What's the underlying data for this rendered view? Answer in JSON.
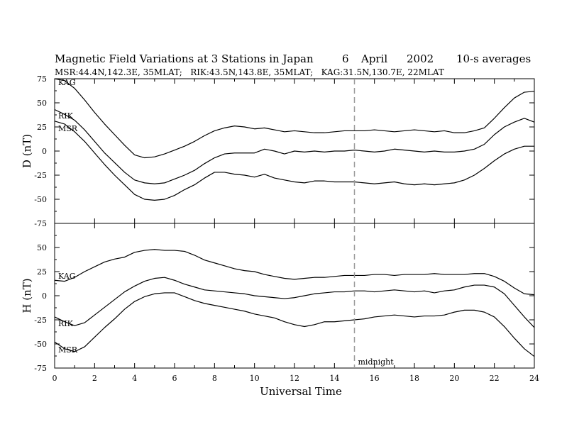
{
  "header": {
    "title": "Magnetic Field Variations at 3 Stations in Japan",
    "date_day": "6",
    "date_month": "April",
    "date_year": "2002",
    "averaging": "10-s averages",
    "stations_line": "MSR:44.4N,142.3E, 35MLAT;   RIK:43.5N,143.8E, 35MLAT;   KAG:31.5N,130.7E, 22MLAT"
  },
  "chart_data": [
    {
      "type": "line",
      "ylabel": "D (nT)",
      "xlim": [
        0,
        24
      ],
      "ylim": [
        -75,
        75
      ],
      "yticks": [
        -75,
        -50,
        -25,
        0,
        25,
        50,
        75
      ],
      "series": [
        {
          "name": "KAG",
          "x": [
            0,
            0.5,
            1,
            1.5,
            2,
            2.5,
            3,
            3.5,
            4,
            4.5,
            5,
            5.5,
            6,
            6.5,
            7,
            7.5,
            8,
            8.5,
            9,
            9.5,
            10,
            10.5,
            11,
            11.5,
            12,
            12.5,
            13,
            13.5,
            14,
            14.5,
            15,
            15.5,
            16,
            16.5,
            17,
            17.5,
            18,
            18.5,
            19,
            19.5,
            20,
            20.5,
            21,
            21.5,
            22,
            22.5,
            23,
            23.5,
            24
          ],
          "y": [
            75,
            73,
            65,
            53,
            40,
            28,
            17,
            6,
            -4,
            -7,
            -6,
            -3,
            1,
            5,
            10,
            16,
            21,
            24,
            26,
            25,
            23,
            24,
            22,
            20,
            21,
            20,
            19,
            19,
            20,
            21,
            21,
            21,
            22,
            21,
            20,
            21,
            22,
            21,
            20,
            21,
            19,
            19,
            21,
            24,
            34,
            45,
            55,
            61,
            62
          ]
        },
        {
          "name": "RIK",
          "x": [
            0,
            0.5,
            1,
            1.5,
            2,
            2.5,
            3,
            3.5,
            4,
            4.5,
            5,
            5.5,
            6,
            6.5,
            7,
            7.5,
            8,
            8.5,
            9,
            9.5,
            10,
            10.5,
            11,
            11.5,
            12,
            12.5,
            13,
            13.5,
            14,
            14.5,
            15,
            15.5,
            16,
            16.5,
            17,
            17.5,
            18,
            18.5,
            19,
            19.5,
            20,
            20.5,
            21,
            21.5,
            22,
            22.5,
            23,
            23.5,
            24
          ],
          "y": [
            43,
            38,
            32,
            22,
            10,
            -2,
            -12,
            -22,
            -30,
            -33,
            -34,
            -33,
            -29,
            -25,
            -20,
            -13,
            -7,
            -3,
            -2,
            -2,
            -2,
            2,
            0,
            -3,
            0,
            -1,
            0,
            -1,
            0,
            0,
            1,
            0,
            -1,
            0,
            2,
            1,
            0,
            -1,
            0,
            -1,
            -1,
            0,
            2,
            7,
            17,
            25,
            30,
            34,
            30
          ]
        },
        {
          "name": "MSR",
          "x": [
            0,
            0.5,
            1,
            1.5,
            2,
            2.5,
            3,
            3.5,
            4,
            4.5,
            5,
            5.5,
            6,
            6.5,
            7,
            7.5,
            8,
            8.5,
            9,
            9.5,
            10,
            10.5,
            11,
            11.5,
            12,
            12.5,
            13,
            13.5,
            14,
            14.5,
            15,
            15.5,
            16,
            16.5,
            17,
            17.5,
            18,
            18.5,
            19,
            19.5,
            20,
            20.5,
            21,
            21.5,
            22,
            22.5,
            23,
            23.5,
            24
          ],
          "y": [
            31,
            28,
            20,
            10,
            -2,
            -14,
            -25,
            -35,
            -45,
            -50,
            -51,
            -50,
            -46,
            -40,
            -35,
            -28,
            -22,
            -22,
            -24,
            -25,
            -27,
            -24,
            -28,
            -30,
            -32,
            -33,
            -31,
            -31,
            -32,
            -32,
            -32,
            -33,
            -34,
            -33,
            -32,
            -34,
            -35,
            -34,
            -35,
            -34,
            -33,
            -30,
            -25,
            -18,
            -10,
            -3,
            2,
            5,
            5
          ]
        }
      ]
    },
    {
      "type": "line",
      "ylabel": "H (nT)",
      "xlabel": "Universal Time",
      "xlim": [
        0,
        24
      ],
      "ylim": [
        -75,
        75
      ],
      "xticks": [
        0,
        2,
        4,
        6,
        8,
        10,
        12,
        14,
        16,
        18,
        20,
        22,
        24
      ],
      "yticks": [
        -75,
        -50,
        -25,
        0,
        25,
        50
      ],
      "series": [
        {
          "name": "KAG",
          "x": [
            0,
            0.5,
            1,
            1.5,
            2,
            2.5,
            3,
            3.5,
            4,
            4.5,
            5,
            5.5,
            6,
            6.5,
            7,
            7.5,
            8,
            8.5,
            9,
            9.5,
            10,
            10.5,
            11,
            11.5,
            12,
            12.5,
            13,
            13.5,
            14,
            14.5,
            15,
            15.5,
            16,
            16.5,
            17,
            17.5,
            18,
            18.5,
            19,
            19.5,
            20,
            20.5,
            21,
            21.5,
            22,
            22.5,
            23,
            23.5,
            24
          ],
          "y": [
            16,
            15,
            19,
            25,
            30,
            35,
            38,
            40,
            45,
            47,
            48,
            47,
            47,
            46,
            42,
            37,
            34,
            31,
            28,
            26,
            25,
            22,
            20,
            18,
            17,
            18,
            19,
            19,
            20,
            21,
            21,
            21,
            22,
            22,
            21,
            22,
            22,
            22,
            23,
            22,
            22,
            22,
            23,
            23,
            20,
            15,
            8,
            2,
            1
          ]
        },
        {
          "name": "RIK",
          "x": [
            0,
            0.5,
            1,
            1.5,
            2,
            2.5,
            3,
            3.5,
            4,
            4.5,
            5,
            5.5,
            6,
            6.5,
            7,
            7.5,
            8,
            8.5,
            9,
            9.5,
            10,
            10.5,
            11,
            11.5,
            12,
            12.5,
            13,
            13.5,
            14,
            14.5,
            15,
            15.5,
            16,
            16.5,
            17,
            17.5,
            18,
            18.5,
            19,
            19.5,
            20,
            20.5,
            21,
            21.5,
            22,
            22.5,
            23,
            23.5,
            24
          ],
          "y": [
            -22,
            -27,
            -31,
            -28,
            -20,
            -12,
            -4,
            4,
            10,
            15,
            18,
            19,
            16,
            12,
            9,
            6,
            5,
            4,
            3,
            2,
            0,
            -1,
            -2,
            -3,
            -2,
            0,
            2,
            3,
            4,
            4,
            5,
            5,
            4,
            5,
            6,
            5,
            4,
            5,
            3,
            5,
            6,
            9,
            11,
            11,
            9,
            2,
            -10,
            -22,
            -33
          ]
        },
        {
          "name": "MSR",
          "x": [
            0,
            0.5,
            1,
            1.5,
            2,
            2.5,
            3,
            3.5,
            4,
            4.5,
            5,
            5.5,
            6,
            6.5,
            7,
            7.5,
            8,
            8.5,
            9,
            9.5,
            10,
            10.5,
            11,
            11.5,
            12,
            12.5,
            13,
            13.5,
            14,
            14.5,
            15,
            15.5,
            16,
            16.5,
            17,
            17.5,
            18,
            18.5,
            19,
            19.5,
            20,
            20.5,
            21,
            21.5,
            22,
            22.5,
            23,
            23.5,
            24
          ],
          "y": [
            -48,
            -55,
            -58,
            -53,
            -43,
            -33,
            -24,
            -14,
            -6,
            -1,
            2,
            3,
            3,
            -1,
            -5,
            -8,
            -10,
            -12,
            -14,
            -16,
            -19,
            -21,
            -23,
            -27,
            -30,
            -32,
            -30,
            -27,
            -27,
            -26,
            -25,
            -24,
            -22,
            -21,
            -20,
            -21,
            -22,
            -21,
            -21,
            -20,
            -17,
            -15,
            -15,
            -17,
            -22,
            -32,
            -44,
            -55,
            -63
          ]
        }
      ]
    }
  ],
  "annotations": {
    "marker_x": 15,
    "marker_label": "midnight"
  },
  "colors": {
    "line": "#000000",
    "marker": "#999999"
  }
}
